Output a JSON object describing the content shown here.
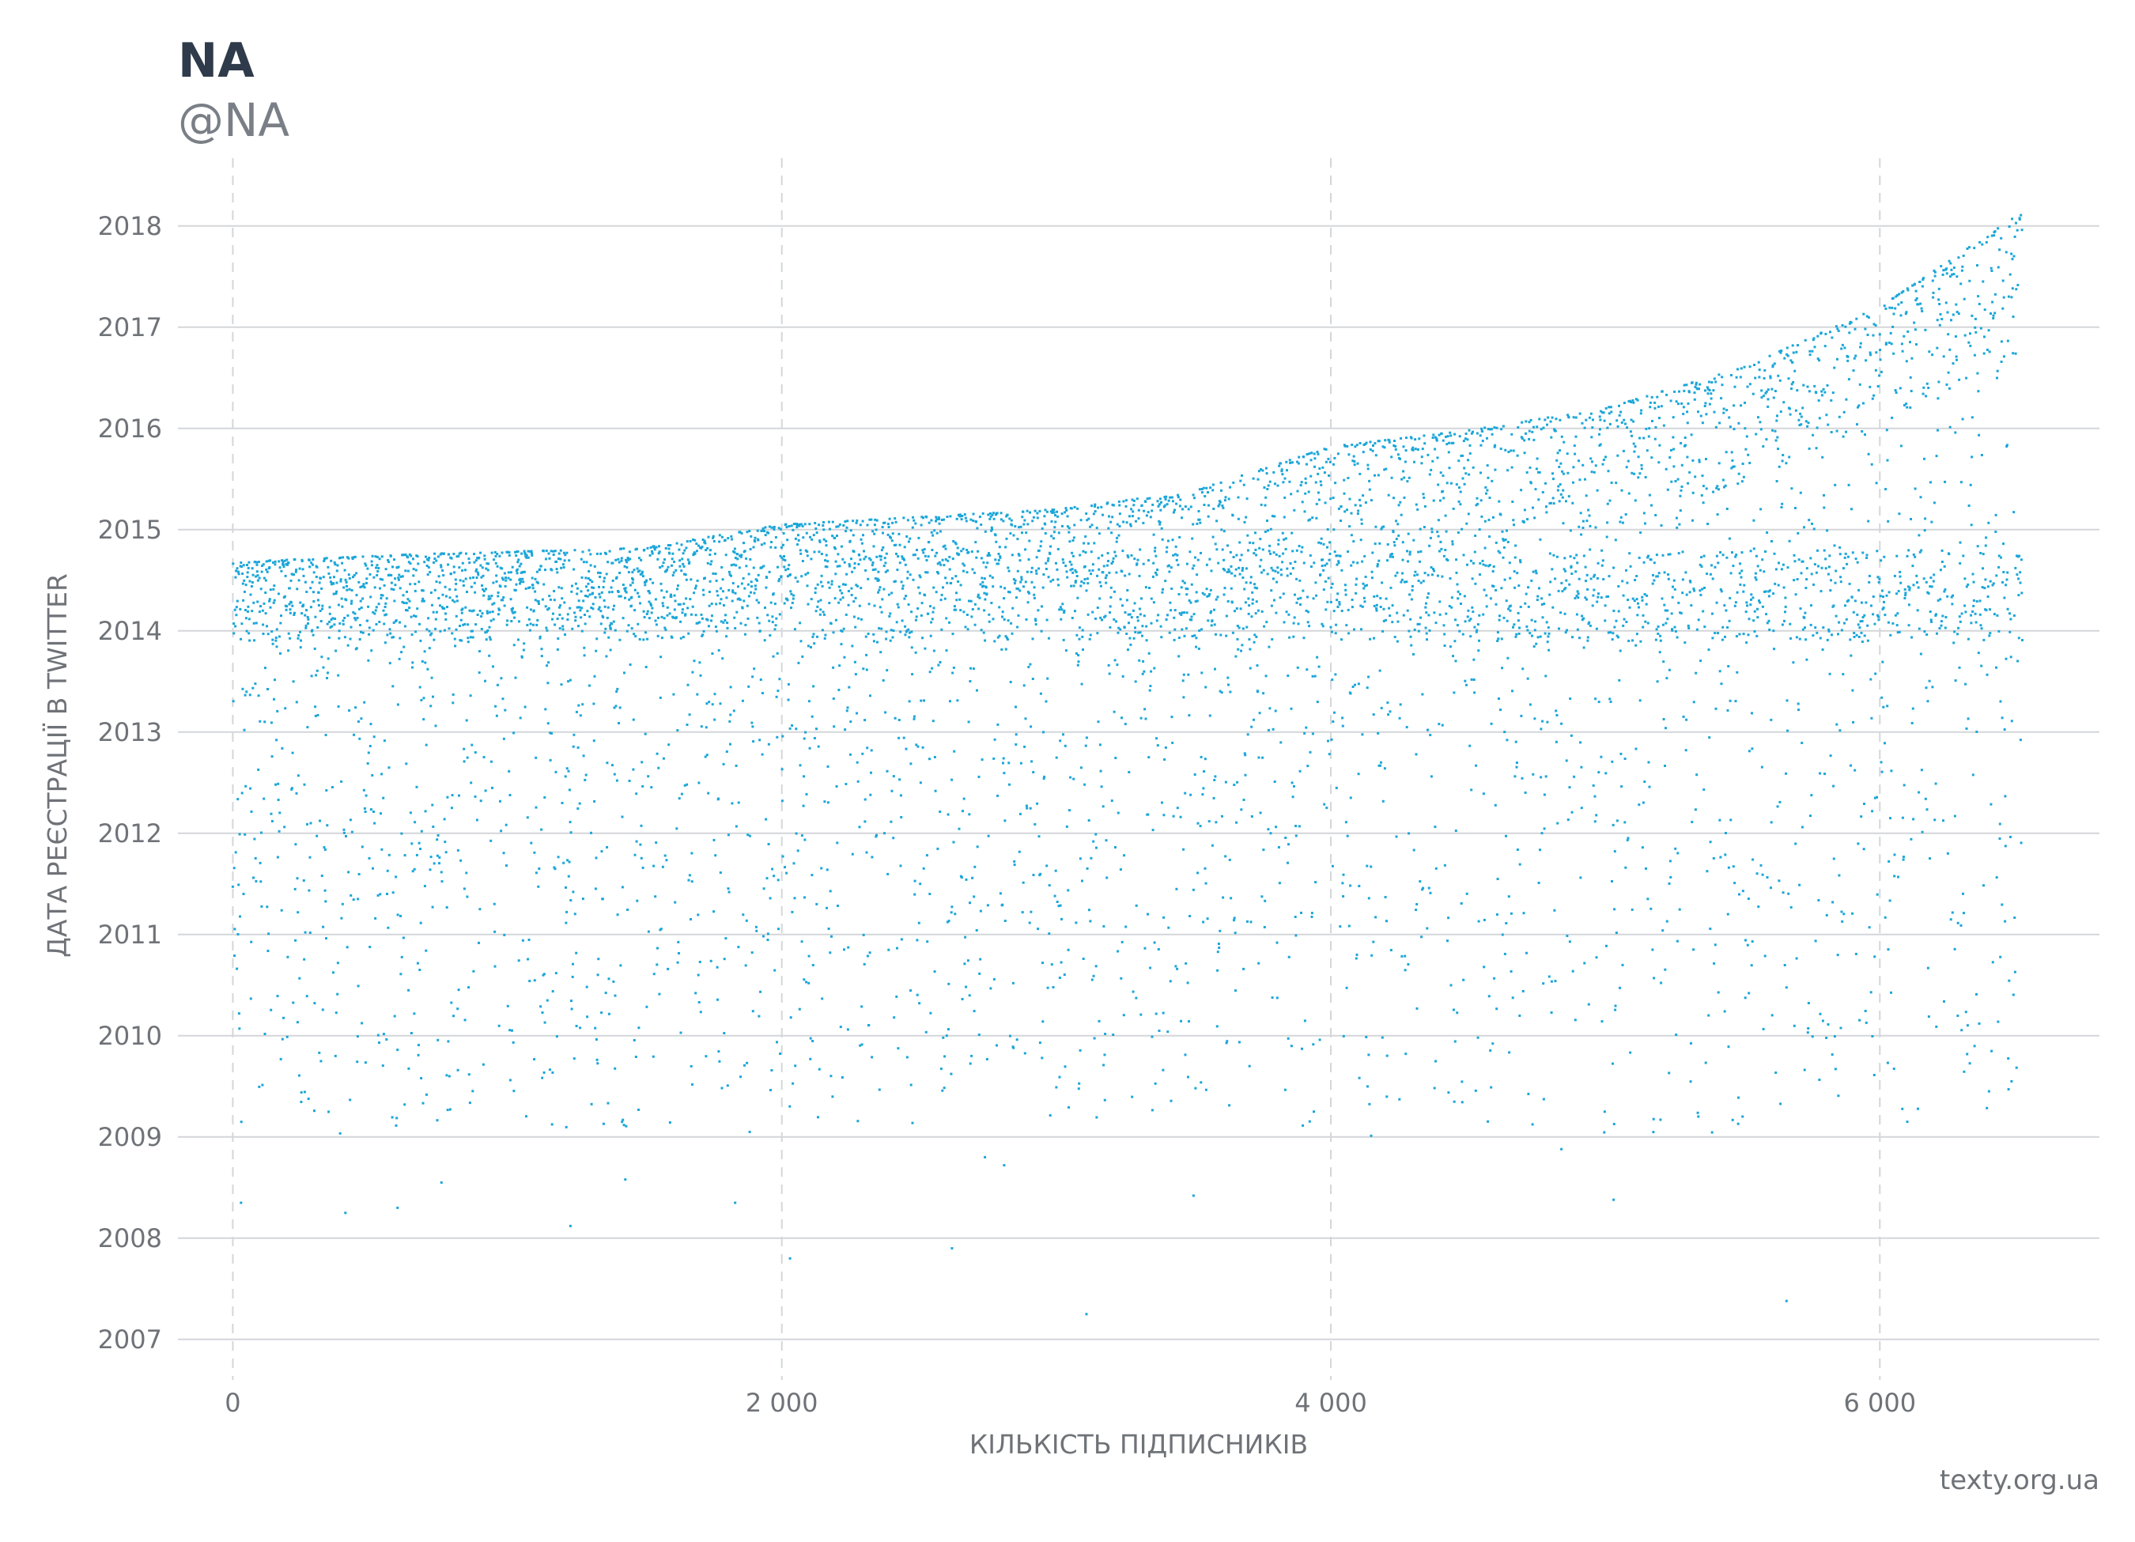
{
  "header": {
    "title": "NA",
    "subtitle": "@NA"
  },
  "footer": {
    "source": "texty.org.ua"
  },
  "chart_data": {
    "type": "scatter",
    "xlabel": "КІЛЬКІСТЬ ПІДПИСНИКІВ",
    "ylabel": "ДАТА РЕЄСТРАЦІЇ В TWITTER",
    "xlim": [
      -200,
      6800
    ],
    "ylim": [
      2006.6,
      2018.67
    ],
    "x_ticks": [
      0,
      2000,
      4000,
      6000
    ],
    "x_tick_labels": [
      "0",
      "2 000",
      "4 000",
      "6 000"
    ],
    "y_ticks": [
      2007,
      2008,
      2009,
      2010,
      2011,
      2012,
      2013,
      2014,
      2015,
      2016,
      2017,
      2018
    ],
    "y_tick_labels": [
      "2007",
      "2008",
      "2009",
      "2010",
      "2011",
      "2012",
      "2013",
      "2014",
      "2015",
      "2016",
      "2017",
      "2018"
    ],
    "grid": {
      "horizontal": "solid",
      "vertical": "dashed"
    },
    "point_color": "#1ba6d8",
    "series": [
      {
        "n_points": 6520,
        "frontier": [
          [
            0,
            2014.68
          ],
          [
            700,
            2014.76
          ],
          [
            1500,
            2014.82
          ],
          [
            2000,
            2015.05
          ],
          [
            3000,
            2015.2
          ],
          [
            3500,
            2015.38
          ],
          [
            4000,
            2015.82
          ],
          [
            4500,
            2015.98
          ],
          [
            5000,
            2016.2
          ],
          [
            5500,
            2016.6
          ],
          [
            6000,
            2017.2
          ],
          [
            6520,
            2018.14
          ]
        ],
        "sample_points": [
          [
            30,
            2008.35
          ],
          [
            410,
            2008.25
          ],
          [
            600,
            2008.3
          ],
          [
            1230,
            2008.12
          ],
          [
            1830,
            2008.35
          ],
          [
            2030,
            2007.8
          ],
          [
            2620,
            2007.9
          ],
          [
            3110,
            2007.25
          ],
          [
            5030,
            2008.38
          ],
          [
            5660,
            2007.38
          ],
          [
            760,
            2008.55
          ],
          [
            1430,
            2008.58
          ],
          [
            2740,
            2008.8
          ],
          [
            3500,
            2008.42
          ],
          [
            4840,
            2008.88
          ],
          [
            6100,
            2009.15
          ],
          [
            6480,
            2009.55
          ],
          [
            2810,
            2008.72
          ]
        ]
      }
    ]
  }
}
